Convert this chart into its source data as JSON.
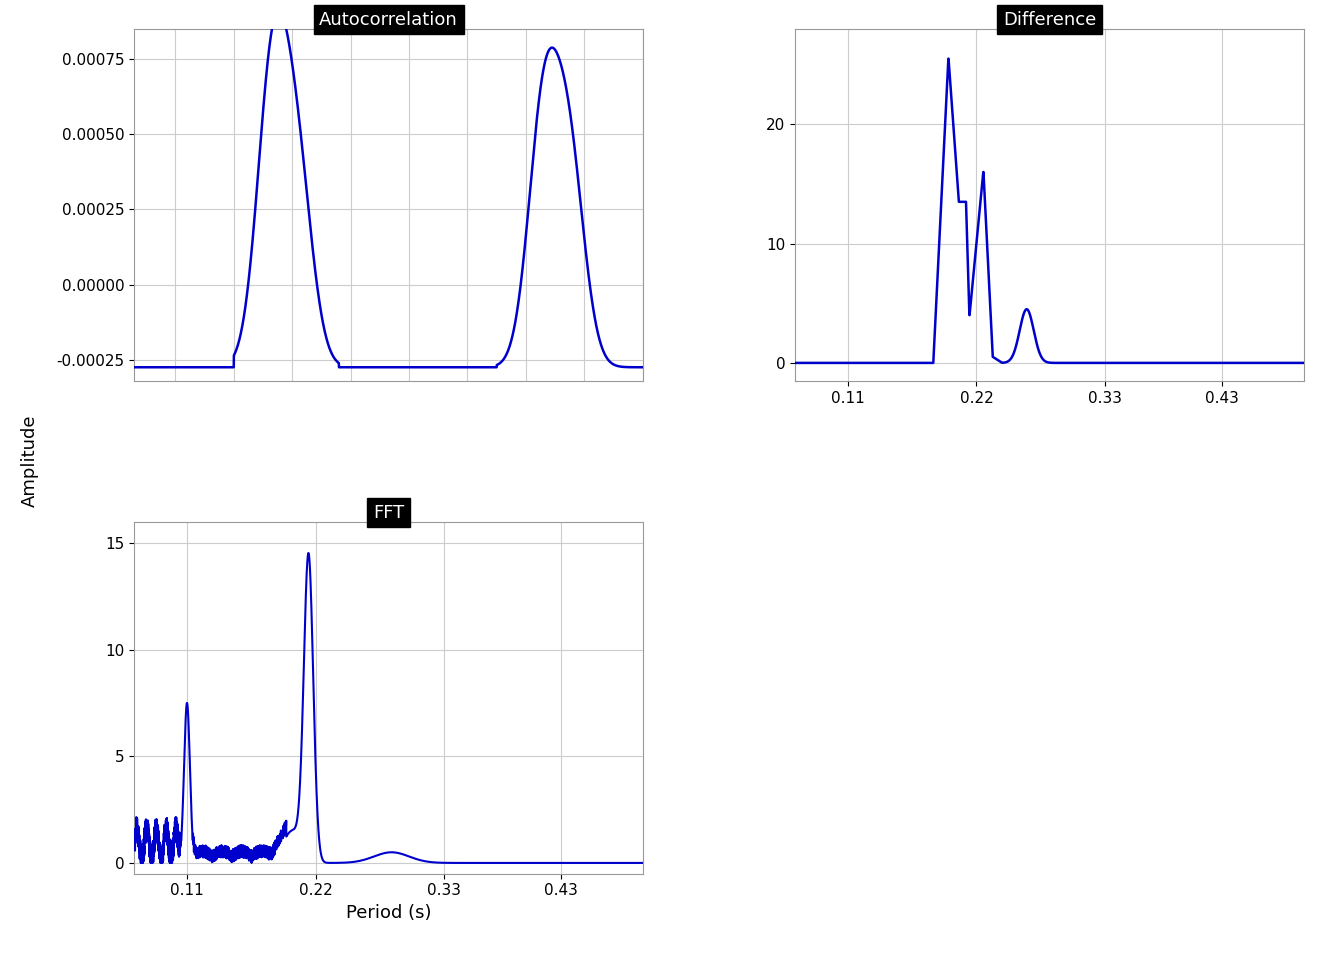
{
  "title_autocorr": "Autocorrelation",
  "title_diff": "Difference",
  "title_fft": "FFT",
  "ylabel": "Amplitude",
  "xlabel": "Period (s)",
  "line_color": "#0000CC",
  "title_bg": "#000000",
  "title_fg": "#ffffff",
  "plot_bg": "#ffffff",
  "grid_color": "#cccccc",
  "fig_bg": "#ffffff",
  "autocorr_yticks": [
    -0.00025,
    0.0,
    0.00025,
    0.0005,
    0.00075
  ],
  "diff_yticks": [
    0,
    10,
    20
  ],
  "diff_xticks": [
    0.11,
    0.22,
    0.33,
    0.43
  ],
  "fft_yticks": [
    0,
    5,
    10,
    15
  ],
  "fft_xticks": [
    0.11,
    0.22,
    0.33,
    0.43
  ],
  "xlim": [
    0.065,
    0.5
  ],
  "autocorr_ylim": [
    -0.00032,
    0.00085
  ],
  "diff_ylim": [
    -1.5,
    28
  ],
  "fft_ylim": [
    -0.5,
    16
  ]
}
